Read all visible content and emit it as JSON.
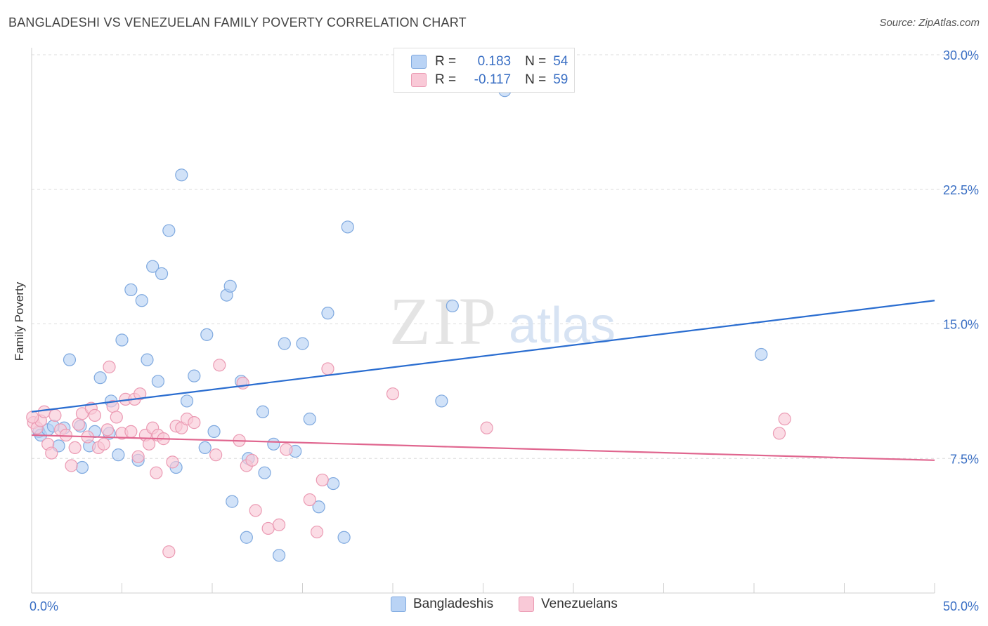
{
  "title": "BANGLADESHI VS VENEZUELAN FAMILY POVERTY CORRELATION CHART",
  "source": "Source: ZipAtlas.com",
  "watermark": {
    "zip": "ZIP",
    "atlas": "atlas"
  },
  "colors": {
    "blue_fill": "#b9d3f5",
    "blue_stroke": "#7fa9df",
    "blue_line": "#2a6dd0",
    "pink_fill": "#f9c9d7",
    "pink_stroke": "#eb9ab3",
    "pink_line": "#e0668f",
    "tick_label": "#3a6fc4"
  },
  "legend": {
    "rows": [
      {
        "r_label": "R =",
        "r_value": "0.183",
        "n_label": "N =",
        "n_value": "54"
      },
      {
        "r_label": "R =",
        "r_value": "-0.117",
        "n_label": "N =",
        "n_value": "59"
      }
    ]
  },
  "bottom_legend": [
    "Bangladeshis",
    "Venezuelans"
  ],
  "chart_data": {
    "type": "scatter",
    "xlabel": "",
    "ylabel": "Family Poverty",
    "xlim": [
      0,
      50
    ],
    "ylim": [
      0,
      30
    ],
    "x_tick_labels": [
      "0.0%",
      "50.0%"
    ],
    "y_ticks": [
      7.5,
      15.0,
      22.5,
      30.0
    ],
    "y_tick_labels": [
      "7.5%",
      "15.0%",
      "22.5%",
      "30.0%"
    ],
    "grid": true,
    "legend_position": "top-center",
    "series": [
      {
        "name": "Bangladeshis",
        "trend": {
          "x": [
            0,
            50
          ],
          "y": [
            10.1,
            16.3
          ]
        },
        "points": [
          [
            0.4,
            9.0
          ],
          [
            0.5,
            8.8
          ],
          [
            0.9,
            9.1
          ],
          [
            1.2,
            9.3
          ],
          [
            1.5,
            8.2
          ],
          [
            1.8,
            9.2
          ],
          [
            2.1,
            13.0
          ],
          [
            2.7,
            9.3
          ],
          [
            2.8,
            7.0
          ],
          [
            3.2,
            8.2
          ],
          [
            3.5,
            9.0
          ],
          [
            3.8,
            12.0
          ],
          [
            4.3,
            8.9
          ],
          [
            4.4,
            10.7
          ],
          [
            4.8,
            7.7
          ],
          [
            5.0,
            14.1
          ],
          [
            5.5,
            16.9
          ],
          [
            5.9,
            7.4
          ],
          [
            6.1,
            16.3
          ],
          [
            6.4,
            13.0
          ],
          [
            6.7,
            18.2
          ],
          [
            7.0,
            11.8
          ],
          [
            7.2,
            17.8
          ],
          [
            7.6,
            20.2
          ],
          [
            8.0,
            7.0
          ],
          [
            8.3,
            23.3
          ],
          [
            8.6,
            10.7
          ],
          [
            9.0,
            12.1
          ],
          [
            9.6,
            8.1
          ],
          [
            9.7,
            14.4
          ],
          [
            10.1,
            9.0
          ],
          [
            10.8,
            16.6
          ],
          [
            11.0,
            17.1
          ],
          [
            11.1,
            5.1
          ],
          [
            11.6,
            11.8
          ],
          [
            11.9,
            3.1
          ],
          [
            12.0,
            7.5
          ],
          [
            12.8,
            10.1
          ],
          [
            12.9,
            6.7
          ],
          [
            13.4,
            8.3
          ],
          [
            13.7,
            2.1
          ],
          [
            14.0,
            13.9
          ],
          [
            14.6,
            7.9
          ],
          [
            15.0,
            13.9
          ],
          [
            15.4,
            9.7
          ],
          [
            15.9,
            4.8
          ],
          [
            16.4,
            15.6
          ],
          [
            16.7,
            6.1
          ],
          [
            17.3,
            3.1
          ],
          [
            17.5,
            20.4
          ],
          [
            22.7,
            10.7
          ],
          [
            23.3,
            16.0
          ],
          [
            26.2,
            28.0
          ],
          [
            40.4,
            13.3
          ]
        ]
      },
      {
        "name": "Venezuelans",
        "trend": {
          "x": [
            0,
            50
          ],
          "y": [
            8.8,
            7.4
          ]
        },
        "points": [
          [
            0.1,
            9.5
          ],
          [
            0.3,
            9.2
          ],
          [
            0.5,
            9.6
          ],
          [
            0.7,
            10.1
          ],
          [
            0.9,
            8.3
          ],
          [
            1.1,
            7.8
          ],
          [
            1.3,
            9.9
          ],
          [
            1.6,
            9.1
          ],
          [
            1.9,
            8.8
          ],
          [
            2.2,
            7.1
          ],
          [
            2.4,
            8.1
          ],
          [
            2.6,
            9.4
          ],
          [
            2.8,
            10.0
          ],
          [
            3.1,
            8.7
          ],
          [
            3.3,
            10.3
          ],
          [
            3.5,
            9.9
          ],
          [
            3.7,
            8.1
          ],
          [
            4.0,
            8.3
          ],
          [
            4.2,
            9.1
          ],
          [
            4.3,
            12.6
          ],
          [
            4.5,
            10.4
          ],
          [
            4.7,
            9.8
          ],
          [
            5.0,
            8.9
          ],
          [
            5.2,
            10.8
          ],
          [
            5.5,
            9.0
          ],
          [
            5.7,
            10.8
          ],
          [
            5.9,
            7.6
          ],
          [
            6.0,
            11.1
          ],
          [
            6.3,
            8.8
          ],
          [
            6.5,
            8.3
          ],
          [
            6.7,
            9.2
          ],
          [
            6.9,
            6.7
          ],
          [
            7.0,
            8.8
          ],
          [
            7.3,
            8.6
          ],
          [
            7.6,
            2.3
          ],
          [
            7.8,
            7.3
          ],
          [
            8.0,
            9.3
          ],
          [
            8.3,
            9.2
          ],
          [
            8.6,
            9.7
          ],
          [
            9.0,
            9.5
          ],
          [
            10.2,
            7.7
          ],
          [
            10.4,
            12.7
          ],
          [
            11.5,
            8.5
          ],
          [
            11.7,
            11.7
          ],
          [
            11.9,
            7.1
          ],
          [
            12.2,
            7.4
          ],
          [
            12.4,
            4.6
          ],
          [
            13.1,
            3.6
          ],
          [
            13.7,
            3.8
          ],
          [
            14.1,
            8.0
          ],
          [
            15.4,
            5.2
          ],
          [
            15.8,
            3.4
          ],
          [
            16.1,
            6.3
          ],
          [
            16.4,
            12.5
          ],
          [
            20.0,
            11.1
          ],
          [
            25.2,
            9.2
          ],
          [
            41.4,
            8.9
          ],
          [
            41.7,
            9.7
          ],
          [
            0.05,
            9.8
          ]
        ]
      }
    ]
  }
}
